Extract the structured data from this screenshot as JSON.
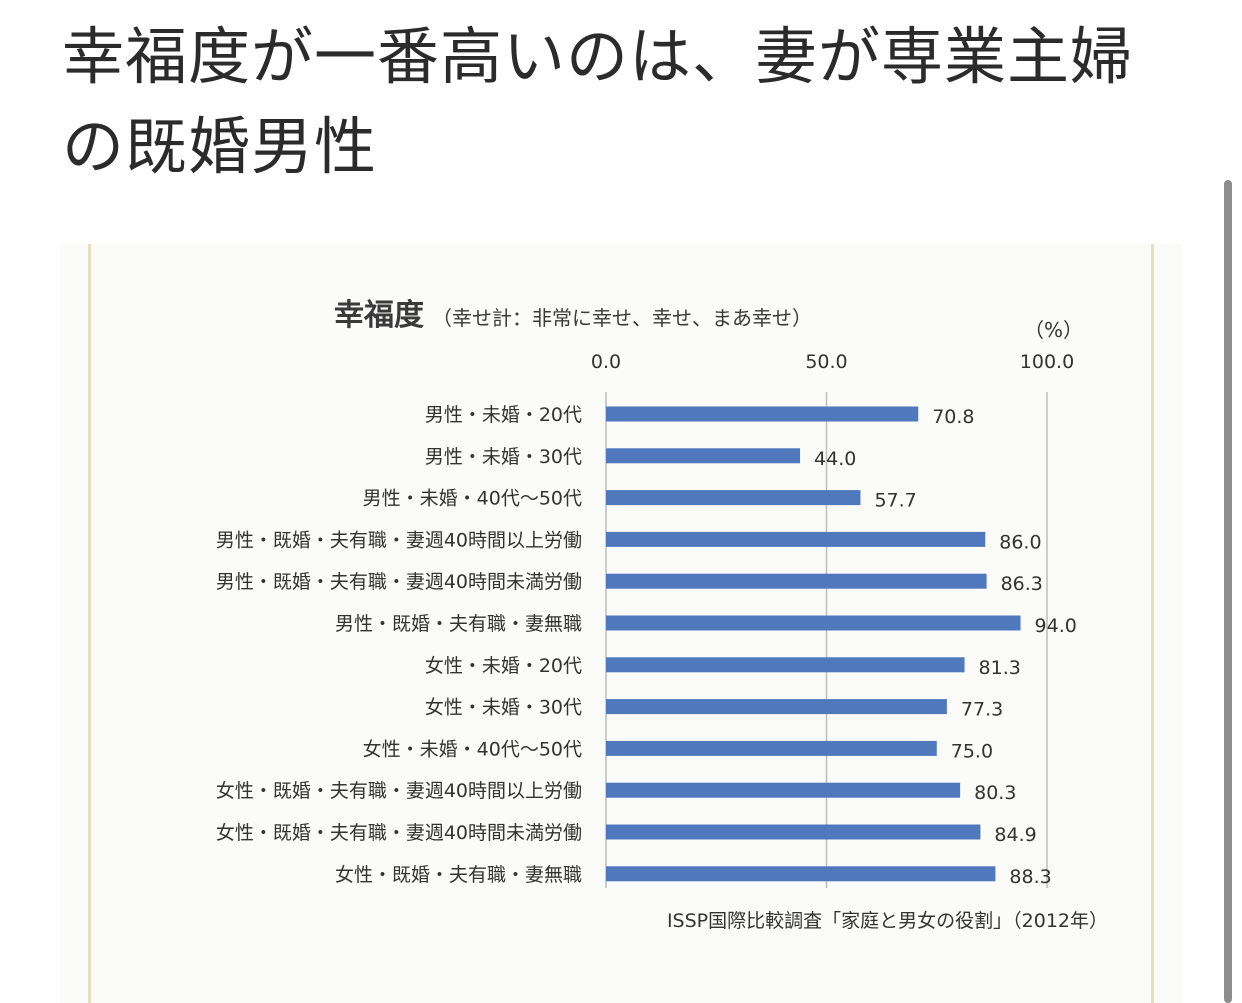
{
  "headline": {
    "line1": "幸福度が一番高いのは、妻が専業主婦",
    "line2": "の既婚男性"
  },
  "colors": {
    "bar": "#4f78bd",
    "grid": "#bdbdbd",
    "frame": "#e6e0bc"
  },
  "chart_data": {
    "type": "bar",
    "orientation": "horizontal",
    "title": "幸福度",
    "subtitle": "（幸せ計：非常に幸せ、幸せ、まあ幸せ）",
    "unit_label": "（%）",
    "xlim": [
      0,
      100
    ],
    "x_ticks": [
      "0.0",
      "50.0",
      "100.0"
    ],
    "categories": [
      "男性・未婚・20代",
      "男性・未婚・30代",
      "男性・未婚・40代～50代",
      "男性・既婚・夫有職・妻週40時間以上労働",
      "男性・既婚・夫有職・妻週40時間未満労働",
      "男性・既婚・夫有職・妻無職",
      "女性・未婚・20代",
      "女性・未婚・30代",
      "女性・未婚・40代～50代",
      "女性・既婚・夫有職・妻週40時間以上労働",
      "女性・既婚・夫有職・妻週40時間未満労働",
      "女性・既婚・夫有職・妻無職"
    ],
    "values": [
      70.8,
      44.0,
      57.7,
      86.0,
      86.3,
      94.0,
      81.3,
      77.3,
      75.0,
      80.3,
      84.9,
      88.3
    ],
    "value_labels": [
      "70.8",
      "44.0",
      "57.7",
      "86.0",
      "86.3",
      "94.0",
      "81.3",
      "77.3",
      "75.0",
      "80.3",
      "84.9",
      "88.3"
    ],
    "source": "ISSP国際比較調査「家庭と男女の役割」（2012年）",
    "grid": true
  }
}
